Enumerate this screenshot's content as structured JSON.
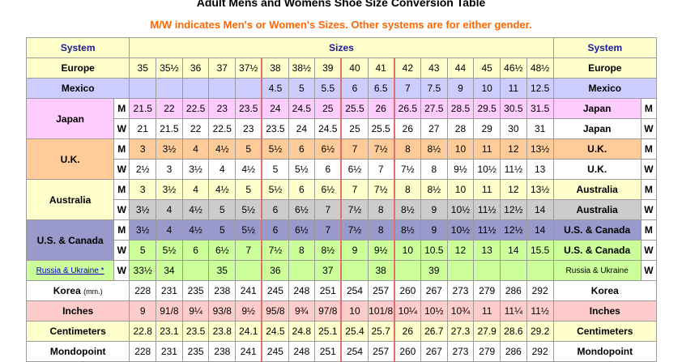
{
  "title": "Adult Mens and Womens Shoe Size Conversion Table",
  "subtitle": "M/W indicates Men's or Women's Sizes. Other systems are for either gender.",
  "header": {
    "system_left": "System",
    "sizes": "Sizes",
    "system_right": "System"
  },
  "rows": [
    {
      "left": "Europe",
      "right": "Europe",
      "color": "#ffffcc",
      "values": [
        "35",
        "35½",
        "36",
        "37",
        "37½",
        "38",
        "38½",
        "39",
        "40",
        "41",
        "42",
        "43",
        "44",
        "45",
        "46½",
        "48½"
      ]
    },
    {
      "left": "Mexico",
      "right": "Mexico",
      "color": "#ccccff",
      "values": [
        "",
        "",
        "",
        "",
        "",
        "4.5",
        "5",
        "5.5",
        "6",
        "6.5",
        "7",
        "7.5",
        "9",
        "10",
        "11",
        "12.5"
      ]
    },
    {
      "left": "Japan",
      "right": "Japan",
      "gender": "M",
      "color": "#ffccff",
      "group_color": "#ffccff",
      "values": [
        "21.5",
        "22",
        "22.5",
        "23",
        "23.5",
        "24",
        "24.5",
        "25",
        "25.5",
        "26",
        "26.5",
        "27.5",
        "28.5",
        "29.5",
        "30.5",
        "31.5"
      ]
    },
    {
      "left": "",
      "right": "Japan",
      "gender": "W",
      "color": "#ffffff",
      "values": [
        "21",
        "21.5",
        "22",
        "22.5",
        "23",
        "23.5",
        "24",
        "24.5",
        "25",
        "25.5",
        "26",
        "27",
        "28",
        "29",
        "30",
        "31"
      ]
    },
    {
      "left": "U.K.",
      "right": "U.K.",
      "gender": "M",
      "color": "#ffcc99",
      "group_color": "#ffcc99",
      "values": [
        "3",
        "3½",
        "4",
        "4½",
        "5",
        "5½",
        "6",
        "6½",
        "7",
        "7½",
        "8",
        "8½",
        "10",
        "11",
        "12",
        "13½"
      ]
    },
    {
      "left": "",
      "right": "U.K.",
      "gender": "W",
      "color": "#ffffff",
      "values": [
        "2½",
        "3",
        "3½",
        "4",
        "4½",
        "5",
        "5½",
        "6",
        "6½",
        "7",
        "7½",
        "8",
        "9½",
        "10½",
        "11½",
        "13"
      ]
    },
    {
      "left": "Australia",
      "right": "Australia",
      "gender": "M",
      "color": "#ffffcc",
      "group_color": "#ffffcc",
      "values": [
        "3",
        "3½",
        "4",
        "4½",
        "5",
        "5½",
        "6",
        "6½",
        "7",
        "7½",
        "8",
        "8½",
        "10",
        "11",
        "12",
        "13½"
      ]
    },
    {
      "left": "",
      "right": "Australia",
      "gender": "W",
      "color": "#cccccc",
      "values": [
        "3½",
        "4",
        "4½",
        "5",
        "5½",
        "6",
        "6½",
        "7",
        "7½",
        "8",
        "8½",
        "9",
        "10½",
        "11½",
        "12½",
        "14"
      ]
    },
    {
      "left": "U.S. & Canada",
      "right": "U.S. & Canada",
      "gender": "M",
      "color": "#9999cc",
      "group_color": "#9999cc",
      "values": [
        "3½",
        "4",
        "4½",
        "5",
        "5½",
        "6",
        "6½",
        "7",
        "7½",
        "8",
        "8½",
        "9",
        "10½",
        "11½",
        "12½",
        "14"
      ]
    },
    {
      "left": "",
      "right": "U.S. & Canada",
      "gender": "W",
      "color": "#ccff99",
      "values": [
        "5",
        "5½",
        "6",
        "6½",
        "7",
        "7½",
        "8",
        "8½",
        "9",
        "9½",
        "10",
        "10.5",
        "12",
        "13",
        "14",
        "15.5"
      ]
    },
    {
      "left": "Russia & Ukraine *",
      "right": "Russia & Ukraine",
      "gender": "W",
      "color": "#ccff99",
      "values": [
        "33½",
        "34",
        "",
        "35",
        "",
        "36",
        "",
        "37",
        "",
        "38",
        "",
        "39",
        "",
        "",
        "",
        ""
      ]
    },
    {
      "left": "Korea",
      "left_unit": "(mm.)",
      "right": "Korea",
      "color": "#ffffff",
      "values": [
        "228",
        "231",
        "235",
        "238",
        "241",
        "245",
        "248",
        "251",
        "254",
        "257",
        "260",
        "267",
        "273",
        "279",
        "286",
        "292"
      ]
    },
    {
      "left": "Inches",
      "right": "Inches",
      "color": "#ffcccc",
      "values": [
        "9",
        "91/8",
        "9¼",
        "93/8",
        "9½",
        "95/8",
        "9¾",
        "97/8",
        "10",
        "101/8",
        "10¼",
        "10½",
        "10¾",
        "11",
        "11¼",
        "11½"
      ]
    },
    {
      "left": "Centimeters",
      "right": "Centimeters",
      "color": "#ffffcc",
      "values": [
        "22.8",
        "23.1",
        "23.5",
        "23.8",
        "24.1",
        "24.5",
        "24.8",
        "25.1",
        "25.4",
        "25.7",
        "26",
        "26.7",
        "27.3",
        "27.9",
        "28.6",
        "29.2"
      ]
    },
    {
      "left": "Mondopoint",
      "right": "Mondopoint",
      "color": "#ffffff",
      "values": [
        "228",
        "231",
        "235",
        "238",
        "241",
        "245",
        "248",
        "251",
        "254",
        "257",
        "260",
        "267",
        "273",
        "279",
        "286",
        "292"
      ]
    }
  ]
}
